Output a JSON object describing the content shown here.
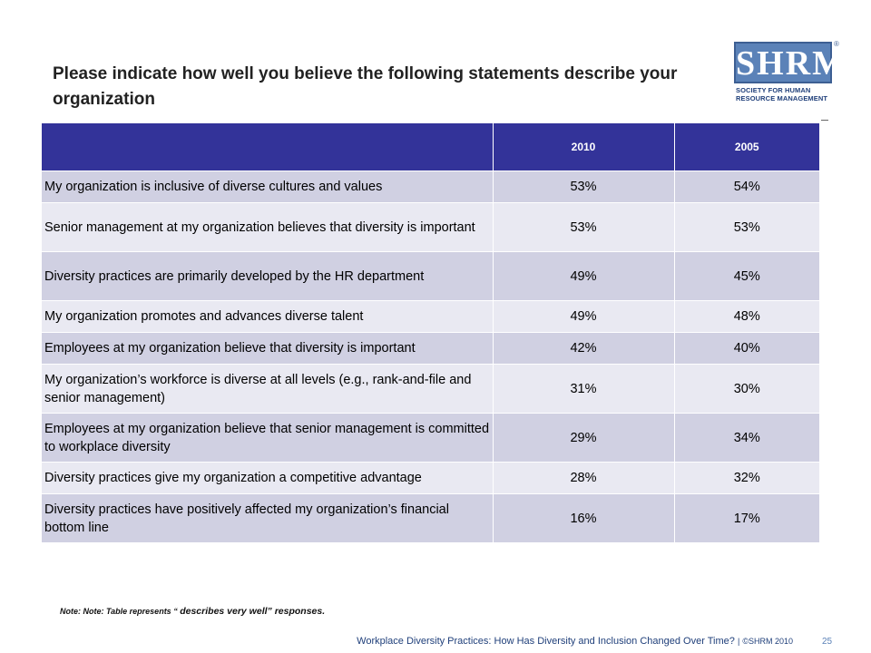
{
  "title": "Please indicate how well you believe the following statements describe your organization",
  "logo": {
    "mark": "SHRM",
    "registered": "®",
    "line1": "SOCIETY FOR HUMAN",
    "line2": "RESOURCE MANAGEMENT",
    "color": "#5b82b8"
  },
  "table": {
    "header_color": "#333399",
    "columns": [
      "",
      "2010",
      "2005"
    ],
    "rows": [
      {
        "label": "My organization is inclusive of diverse cultures and values",
        "v2010": "53%",
        "v2005": "54%"
      },
      {
        "label": "Senior management at my organization believes that diversity is important",
        "v2010": "53%",
        "v2005": "53%"
      },
      {
        "label": "Diversity practices are primarily developed by the HR department",
        "v2010": "49%",
        "v2005": "45%"
      },
      {
        "label": "My organization promotes and advances diverse talent",
        "v2010": "49%",
        "v2005": "48%"
      },
      {
        "label": "Employees at my organization believe that diversity is important",
        "v2010": "42%",
        "v2005": "40%"
      },
      {
        "label": "My organization’s workforce is diverse at all levels (e.g., rank-and-file and senior management)",
        "v2010": "31%",
        "v2005": "30%"
      },
      {
        "label": "Employees at my organization believe that senior management is committed to workplace diversity",
        "v2010": "29%",
        "v2005": "34%"
      },
      {
        "label": "Diversity practices give my organization a competitive advantage",
        "v2010": "28%",
        "v2005": "32%"
      },
      {
        "label": "Diversity practices have positively affected my organization’s financial bottom line",
        "v2010": "16%",
        "v2005": "17%"
      }
    ]
  },
  "note": {
    "prefix": "Note: Note: Table represents “",
    "emphasis": "describes very well” responses."
  },
  "footer": {
    "title": "Workplace Diversity Practices: How Has Diversity and Inclusion Changed Over Time?",
    "separator": "|",
    "copyright": "©SHRM 2010",
    "page": "25"
  }
}
